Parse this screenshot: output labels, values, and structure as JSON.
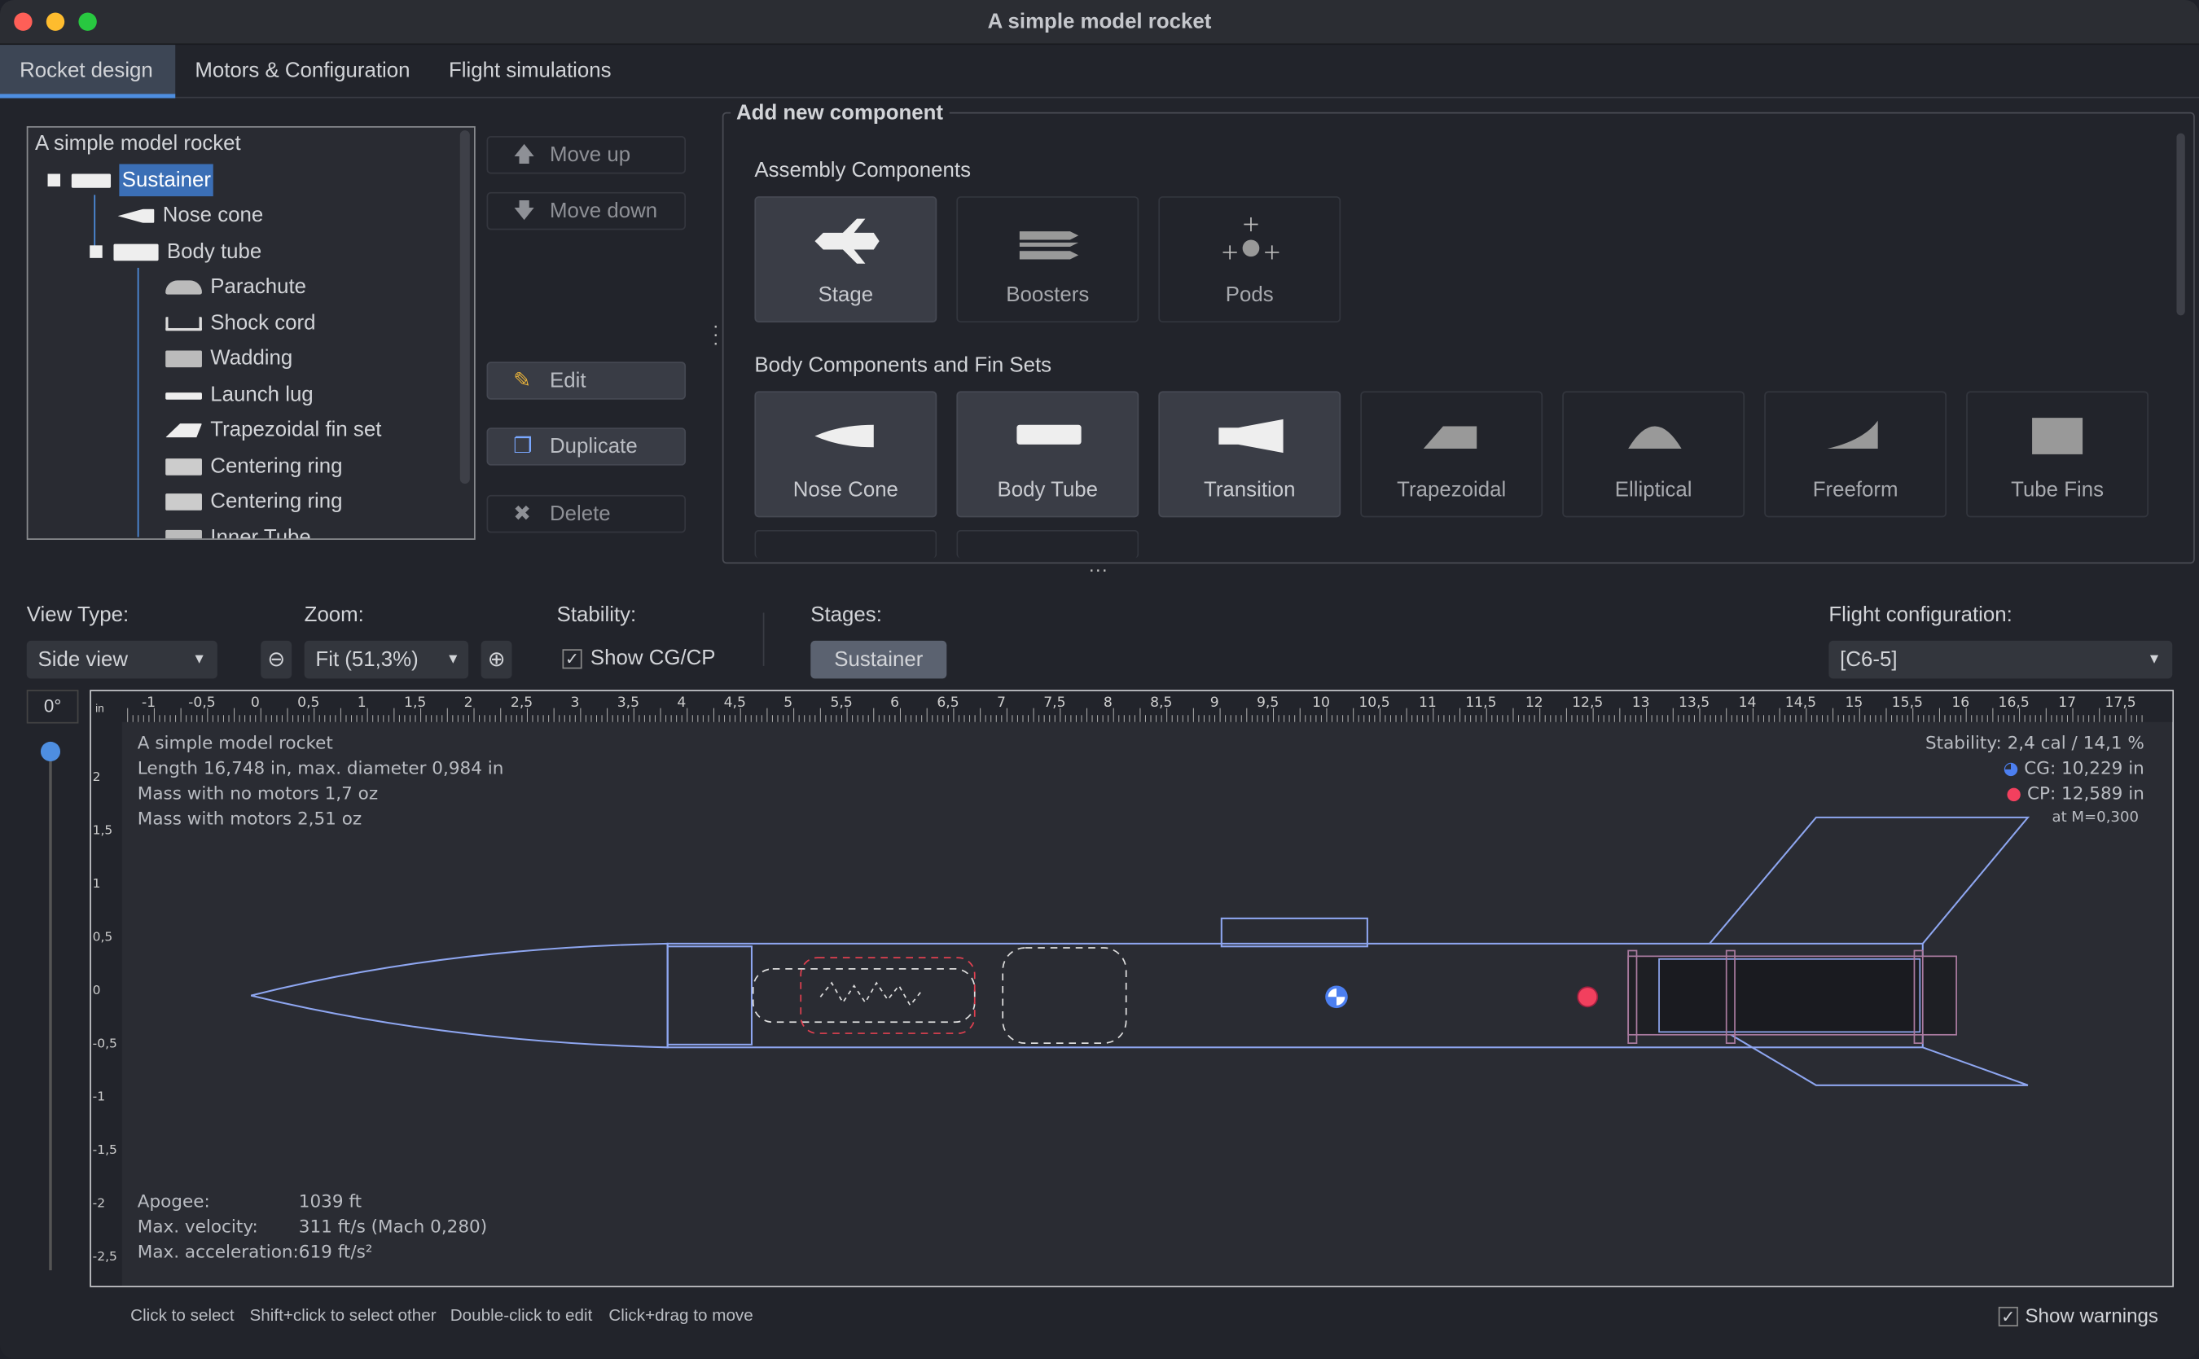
{
  "window": {
    "title": "A simple model rocket"
  },
  "tabs": [
    {
      "label": "Rocket design"
    },
    {
      "label": "Motors & Configuration"
    },
    {
      "label": "Flight simulations"
    }
  ],
  "tree": {
    "root": "A simple model rocket",
    "items": [
      "Sustainer",
      "Nose cone",
      "Body tube",
      "Parachute",
      "Shock cord",
      "Wadding",
      "Launch lug",
      "Trapezoidal fin set",
      "Centering ring",
      "Centering ring",
      "Inner Tube"
    ],
    "selected": "Sustainer"
  },
  "actions": {
    "move_up": "Move up",
    "move_down": "Move down",
    "edit": "Edit",
    "duplicate": "Duplicate",
    "delete": "Delete"
  },
  "add_panel": {
    "title": "Add new component",
    "assembly_title": "Assembly Components",
    "assembly": [
      "Stage",
      "Boosters",
      "Pods"
    ],
    "body_title": "Body Components and Fin Sets",
    "body": [
      "Nose Cone",
      "Body Tube",
      "Transition",
      "Trapezoidal",
      "Elliptical",
      "Freeform",
      "Tube Fins"
    ]
  },
  "view": {
    "view_type_label": "View Type:",
    "view_type": "Side view",
    "zoom_label": "Zoom:",
    "zoom": "Fit (51,3%)",
    "stability_label": "Stability:",
    "show_cgcp": "Show CG/CP",
    "show_cgcp_checked": true,
    "stages_label": "Stages:",
    "stage": "Sustainer",
    "flight_config_label": "Flight configuration:",
    "flight_config": "[C6-5]",
    "rotation": "0°"
  },
  "ruler": {
    "unit": "in",
    "x_ticks": [
      "-1",
      "-0,5",
      "0",
      "0,5",
      "1",
      "1,5",
      "2",
      "2,5",
      "3",
      "3,5",
      "4",
      "4,5",
      "5",
      "5,5",
      "6",
      "6,5",
      "7",
      "7,5",
      "8",
      "8,5",
      "9",
      "9,5",
      "10",
      "10,5",
      "11",
      "11,5",
      "12",
      "12,5",
      "13",
      "13,5",
      "14",
      "14,5",
      "15",
      "15,5",
      "16",
      "16,5",
      "17",
      "17,5"
    ],
    "y_ticks": [
      "2",
      "1,5",
      "1",
      "0,5",
      "0",
      "-0,5",
      "-1",
      "-1,5",
      "-2",
      "-2,5"
    ]
  },
  "info": {
    "name": "A simple model rocket",
    "length": "Length 16,748 in, max. diameter 0,984 in",
    "mass_no_motors": "Mass with no motors 1,7 oz",
    "mass_with_motors": "Mass with motors 2,51 oz",
    "stability": "Stability: 2,4 cal / 14,1 %",
    "cg": "CG: 10,229 in",
    "cp": "CP: 12,589 in",
    "mach": "at M=0,300",
    "apogee_label": "Apogee:",
    "apogee": "1039 ft",
    "velocity_label": "Max. velocity:",
    "velocity": "311 ft/s  (Mach 0,280)",
    "accel_label": "Max. acceleration:",
    "accel": "619 ft/s²"
  },
  "colors": {
    "accent": "#4e8ee0",
    "cg": "#4c7ff0",
    "cp": "#f2405e",
    "outline": "#8ea6f0"
  },
  "footer": {
    "hints": [
      "Click to select",
      "Shift+click to select other",
      "Double-click to edit",
      "Click+drag to move"
    ],
    "show_warnings": "Show warnings",
    "show_warnings_checked": true
  }
}
